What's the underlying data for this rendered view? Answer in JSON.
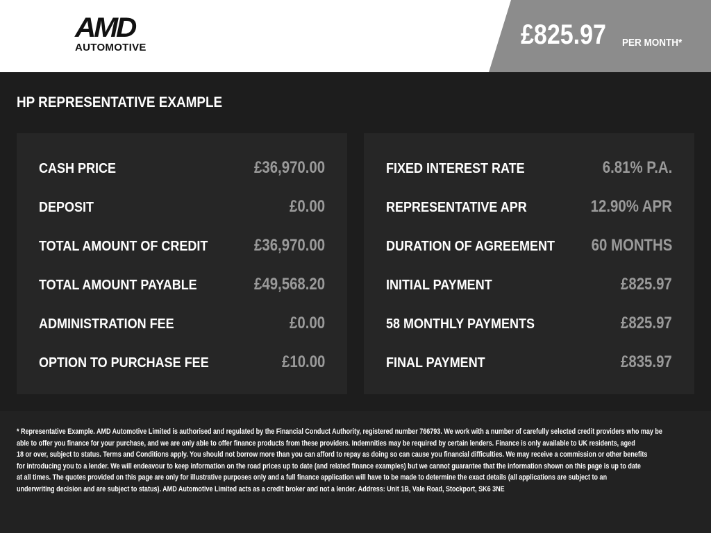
{
  "header": {
    "logo_text": "AMD",
    "logo_sub": "AUTOMOTIVE",
    "price": "£825.97",
    "per_month": "PER MONTH*"
  },
  "title": "HP REPRESENTATIVE EXAMPLE",
  "left": [
    {
      "label": "CASH PRICE",
      "value": "£36,970.00"
    },
    {
      "label": "DEPOSIT",
      "value": "£0.00"
    },
    {
      "label": "TOTAL AMOUNT OF CREDIT",
      "value": "£36,970.00"
    },
    {
      "label": "TOTAL AMOUNT PAYABLE",
      "value": "£49,568.20"
    },
    {
      "label": "ADMINISTRATION FEE",
      "value": "£0.00"
    },
    {
      "label": "OPTION TO PURCHASE FEE",
      "value": "£10.00"
    }
  ],
  "right": [
    {
      "label": "FIXED INTEREST RATE",
      "value": "6.81% P.A."
    },
    {
      "label": "REPRESENTATIVE APR",
      "value": "12.90% APR"
    },
    {
      "label": "DURATION OF AGREEMENT",
      "value": "60 MONTHS"
    },
    {
      "label": "INITIAL PAYMENT",
      "value": "£825.97"
    },
    {
      "label": "58 MONTHLY PAYMENTS",
      "value": "£825.97"
    },
    {
      "label": "FINAL PAYMENT",
      "value": "£835.97"
    }
  ],
  "footer": [
    "* Representative Example. AMD Automotive Limited is authorised and regulated by the Financial Conduct Authority, registered number 766793. We work with a number of carefully selected credit providers who may be",
    "able to offer you finance for your purchase, and we are only able to offer finance products from these providers. Indemnities may be required by certain lenders. Finance is only available to UK residents, aged",
    "18 or over, subject to status. Terms and Conditions apply. You should not borrow more than you can afford to repay as doing so can cause you financial difficulties. We may receive a commission or other benefits",
    "for introducing you to a lender. We will endeavour to keep information on the road prices up to date (and related finance examples) but we cannot guarantee that the information shown on this page is up to date",
    "at all times. The quotes provided on this page are only for illustrative purposes only and a full finance application will have to be made to determine the exact details (all applications are subject to an",
    "underwriting decision and are subject to status). AMD Automotive Limited acts as a credit broker and not a lender. Address: Unit 1B, Vale Road, Stockport, SK6 3NE"
  ]
}
